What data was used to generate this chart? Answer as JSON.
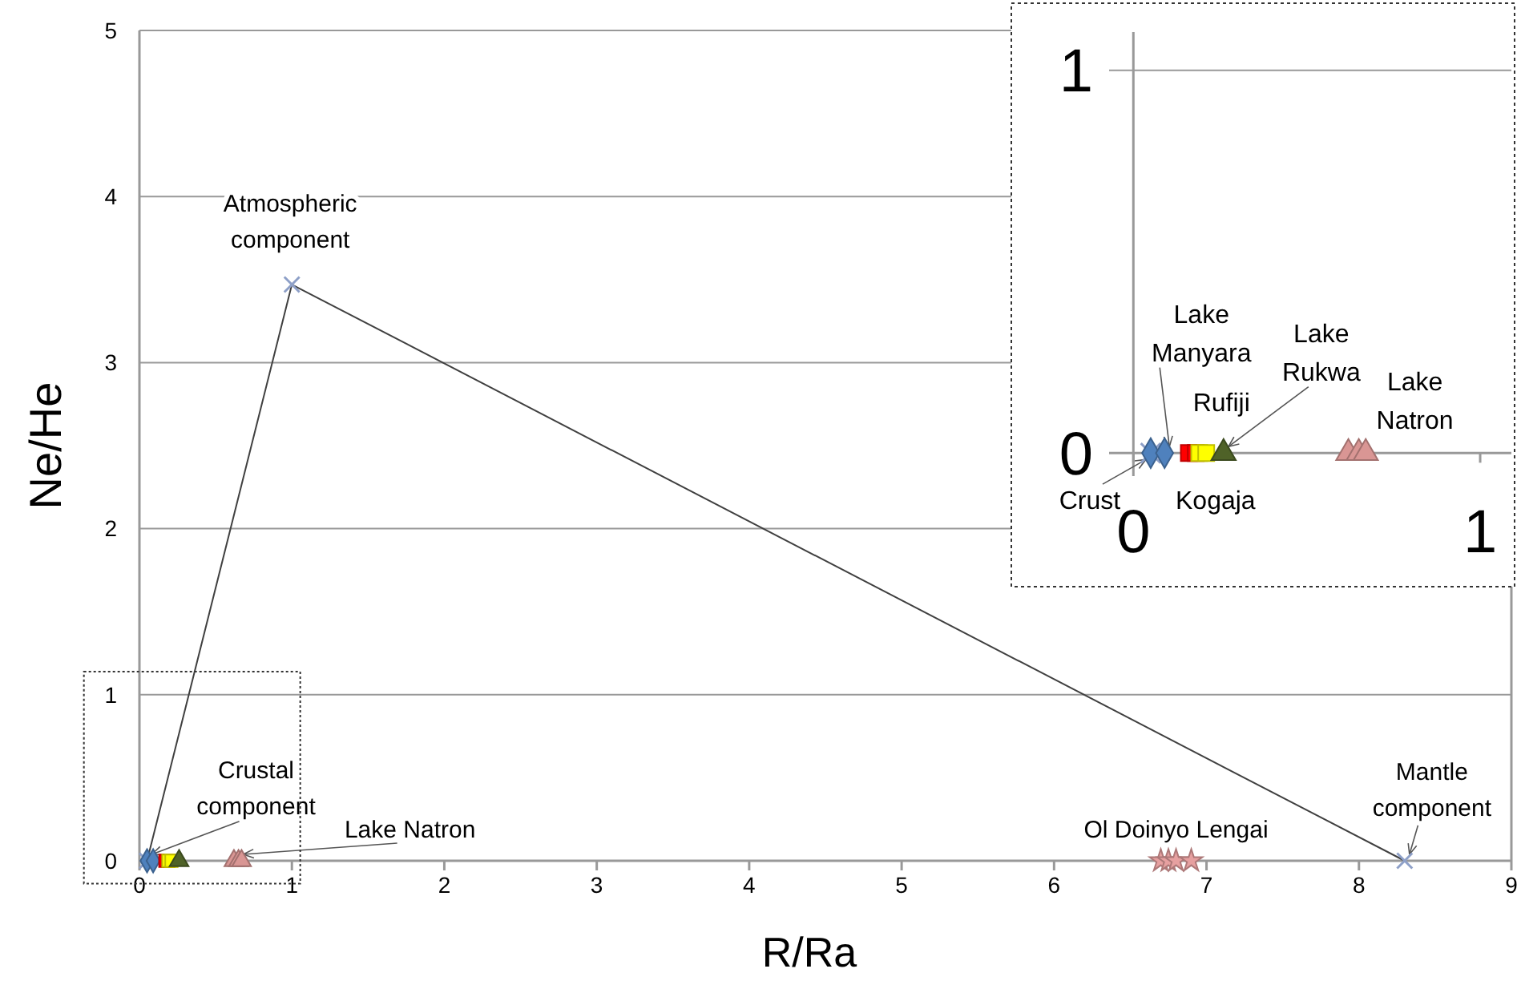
{
  "chart_data": [
    {
      "type": "scatter",
      "xlabel": "R/Ra",
      "ylabel": "Ne/He",
      "xlim": [
        0,
        9
      ],
      "ylim": [
        0,
        5
      ],
      "xticks": [
        0,
        1,
        2,
        3,
        4,
        5,
        6,
        7,
        8,
        9
      ],
      "yticks": [
        0,
        1,
        2,
        3,
        4,
        5
      ],
      "grid": "y",
      "series": [
        {
          "type": "line",
          "color": "#404040",
          "x": [
            0.05,
            1,
            8.3
          ],
          "values": [
            0,
            3.47,
            0
          ]
        },
        {
          "color": "#8ea0c8",
          "marker": "cross",
          "x": [
            0.05,
            1,
            8.3
          ],
          "values": [
            0,
            3.47,
            0
          ]
        },
        {
          "color": "#4f81bd",
          "marker": "diamond",
          "x": [
            0.05,
            0.09
          ],
          "values": [
            0,
            0
          ]
        },
        {
          "color": "#ff0000",
          "marker": "square",
          "x": [
            0.17,
            0.19
          ],
          "values": [
            0,
            0
          ]
        },
        {
          "color": "#ffff00",
          "marker": "square",
          "x": [
            0.19,
            0.21
          ],
          "values": [
            0,
            0
          ]
        },
        {
          "color": "#4f6228",
          "marker": "triangle",
          "x": [
            0.26
          ],
          "values": [
            0
          ]
        },
        {
          "color": "#d99694",
          "marker": "triangle",
          "x": [
            0.62,
            0.65,
            0.67
          ],
          "values": [
            0,
            0,
            0
          ]
        },
        {
          "color": "#e6a0a0",
          "marker": "star",
          "x": [
            6.7,
            6.75,
            6.8,
            6.9
          ],
          "values": [
            0,
            0,
            0,
            0
          ]
        }
      ],
      "annotations": [
        {
          "text": "Atmospheric component",
          "x": 1,
          "y": 3.47
        },
        {
          "text": "Crustal component",
          "x": 0.05,
          "y": 0
        },
        {
          "text": "Lake Natron",
          "x": 0.65,
          "y": 0
        },
        {
          "text": "Ol Doinyo Lengai",
          "x": 6.8,
          "y": 0
        },
        {
          "text": "Mantle component",
          "x": 8.3,
          "y": 0
        }
      ]
    },
    {
      "type": "scatter",
      "xlim": [
        -0.07,
        1.09
      ],
      "ylim": [
        -0.06,
        1.1
      ],
      "xticks": [
        0,
        1
      ],
      "yticks": [
        0,
        1
      ],
      "grid": "y",
      "series": [
        {
          "color": "#8ea0c8",
          "marker": "cross",
          "x": [
            0.05
          ],
          "values": [
            0
          ]
        },
        {
          "color": "#4f81bd",
          "marker": "diamond",
          "x": [
            0.05,
            0.09
          ],
          "values": [
            0,
            0
          ]
        },
        {
          "color": "#ff0000",
          "marker": "square",
          "x": [
            0.16,
            0.18
          ],
          "values": [
            0,
            0
          ]
        },
        {
          "color": "#ffff00",
          "marker": "square",
          "x": [
            0.19,
            0.21
          ],
          "values": [
            0,
            0
          ]
        },
        {
          "color": "#4f6228",
          "marker": "triangle",
          "x": [
            0.26
          ],
          "values": [
            0
          ]
        },
        {
          "color": "#d99694",
          "marker": "triangle",
          "x": [
            0.62,
            0.65,
            0.67
          ],
          "values": [
            0,
            0,
            0
          ]
        }
      ],
      "annotations": [
        {
          "text": "Crust",
          "x": 0.05,
          "y": 0
        },
        {
          "text": "Lake Manyara",
          "x": 0.09,
          "y": 0
        },
        {
          "text": "Rufiji",
          "x": 0.18,
          "y": 0
        },
        {
          "text": "Kogaja",
          "x": 0.2,
          "y": 0
        },
        {
          "text": "Lake Rukwa",
          "x": 0.26,
          "y": 0
        },
        {
          "text": "Lake Natron",
          "x": 0.65,
          "y": 0
        }
      ]
    }
  ]
}
